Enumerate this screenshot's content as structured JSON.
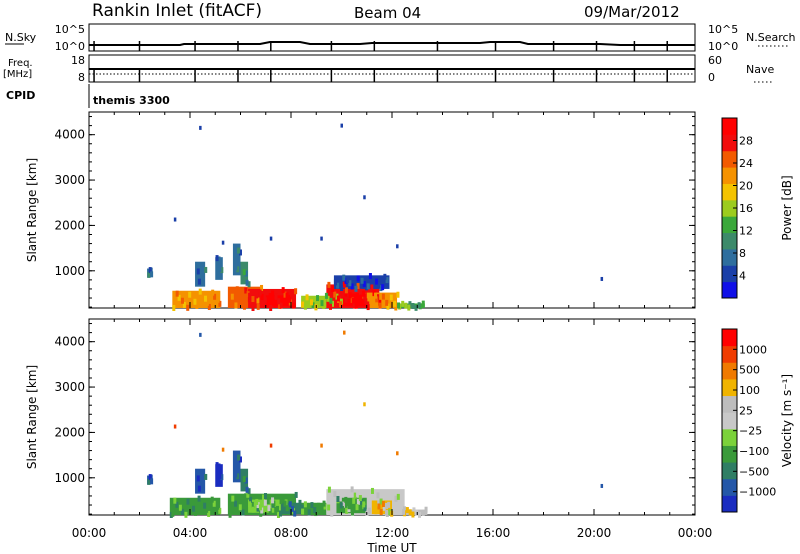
{
  "header": {
    "station": "Rankin Inlet (fitACF)",
    "beam": "Beam 04",
    "date": "09/Mar/2012"
  },
  "top_panels": {
    "nsky_label": "N.Sky",
    "nsky_ticks": [
      "10^5",
      "10^0"
    ],
    "nsearch_label": "N.Search",
    "nsearch_ticks": [
      "10^5",
      "10^0"
    ],
    "freq_label": "Freq.",
    "freq_unit": "[MHz]",
    "freq_ticks": [
      "18",
      "8"
    ],
    "nave_label": "Nave",
    "nave_ticks": [
      "60",
      "0"
    ],
    "cpid_label": "CPID",
    "cpid_value": "themis 3300"
  },
  "time_axis": {
    "label": "Time UT",
    "ticks": [
      "00:00",
      "04:00",
      "08:00",
      "12:00",
      "16:00",
      "20:00",
      "00:00"
    ]
  },
  "colors": {
    "power_scale": [
      "#1010e8",
      "#1a3fa8",
      "#2e6e9e",
      "#3c8a6a",
      "#3aa83a",
      "#9ccc1e",
      "#f4c300",
      "#f59200",
      "#f25a00",
      "#f20c0c",
      "#ff0000"
    ],
    "velocity_scale": [
      "#1a2cc0",
      "#2457a8",
      "#2f7e64",
      "#3a9a3a",
      "#7bd23a",
      "#c8c8c8",
      "#bdbdbd",
      "#f0b400",
      "#f07a00",
      "#f03c00",
      "#ff0000"
    ]
  },
  "chart_data": [
    {
      "type": "heatmap",
      "name": "power",
      "xlabel": "",
      "ylabel": "Slant Range [km]",
      "ylim": [
        180,
        4500
      ],
      "yticks": [
        1000,
        2000,
        3000,
        4000
      ],
      "xlim": [
        0,
        24
      ],
      "colorbar": {
        "label": "Power [dB]",
        "ticks": [
          "28",
          "24",
          "20",
          "16",
          "12",
          "8",
          "4"
        ]
      },
      "patches": [
        {
          "t0": 3.3,
          "t1": 5.2,
          "r0": 180,
          "r1": 560,
          "c": 7
        },
        {
          "t0": 5.5,
          "t1": 6.8,
          "r0": 180,
          "r1": 650,
          "c": 8
        },
        {
          "t0": 6.3,
          "t1": 8.2,
          "r0": 180,
          "r1": 600,
          "c": 9
        },
        {
          "t0": 7.0,
          "t1": 7.9,
          "r0": 220,
          "r1": 460,
          "c": 10
        },
        {
          "t0": 8.4,
          "t1": 10.0,
          "r0": 180,
          "r1": 450,
          "c": 5
        },
        {
          "t0": 9.4,
          "t1": 11.5,
          "r0": 180,
          "r1": 700,
          "c": 9
        },
        {
          "t0": 10.0,
          "t1": 11.1,
          "r0": 220,
          "r1": 500,
          "c": 10
        },
        {
          "t0": 11.0,
          "t1": 12.2,
          "r0": 180,
          "r1": 520,
          "c": 7
        },
        {
          "t0": 12.2,
          "t1": 13.3,
          "r0": 180,
          "r1": 280,
          "c": 4
        },
        {
          "t0": 4.2,
          "t1": 4.6,
          "r0": 650,
          "r1": 1200,
          "c": 2
        },
        {
          "t0": 5.0,
          "t1": 5.3,
          "r0": 800,
          "r1": 1300,
          "c": 2
        },
        {
          "t0": 5.7,
          "t1": 6.0,
          "r0": 900,
          "r1": 1600,
          "c": 2
        },
        {
          "t0": 6.0,
          "t1": 6.3,
          "r0": 700,
          "r1": 1200,
          "c": 3
        },
        {
          "t0": 2.3,
          "t1": 2.45,
          "r0": 850,
          "r1": 1050,
          "c": 2
        },
        {
          "t0": 9.7,
          "t1": 11.9,
          "r0": 600,
          "r1": 900,
          "c": 1
        }
      ],
      "points": [
        {
          "t": 4.4,
          "r": 4150,
          "c": 1
        },
        {
          "t": 10.0,
          "r": 4200,
          "c": 1
        },
        {
          "t": 10.9,
          "r": 2620,
          "c": 1
        },
        {
          "t": 3.4,
          "r": 2130,
          "c": 1
        },
        {
          "t": 7.2,
          "r": 1710,
          "c": 1
        },
        {
          "t": 9.2,
          "r": 1710,
          "c": 1
        },
        {
          "t": 12.2,
          "r": 1540,
          "c": 1
        },
        {
          "t": 20.3,
          "r": 820,
          "c": 1
        },
        {
          "t": 5.3,
          "r": 1620,
          "c": 1
        }
      ]
    },
    {
      "type": "heatmap",
      "name": "velocity",
      "xlabel": "Time UT",
      "ylabel": "Slant Range [km]",
      "ylim": [
        180,
        4500
      ],
      "yticks": [
        1000,
        2000,
        3000,
        4000
      ],
      "xlim": [
        0,
        24
      ],
      "colorbar": {
        "label": "Velocity [m s⁻¹]",
        "ticks": [
          "1000",
          "500",
          "100",
          "25",
          "−25",
          "−100",
          "−500",
          "−1000"
        ]
      },
      "patches": [
        {
          "t0": 3.2,
          "t1": 5.2,
          "r0": 180,
          "r1": 560,
          "c": 3
        },
        {
          "t0": 5.5,
          "t1": 8.2,
          "r0": 180,
          "r1": 650,
          "c": 3
        },
        {
          "t0": 6.3,
          "t1": 7.6,
          "r0": 230,
          "r1": 520,
          "c": 4
        },
        {
          "t0": 7.6,
          "t1": 8.4,
          "r0": 200,
          "r1": 450,
          "c": 2
        },
        {
          "t0": 8.4,
          "t1": 9.4,
          "r0": 180,
          "r1": 450,
          "c": 3
        },
        {
          "t0": 9.4,
          "t1": 12.5,
          "r0": 180,
          "r1": 750,
          "c": 5
        },
        {
          "t0": 9.8,
          "t1": 11.0,
          "r0": 220,
          "r1": 560,
          "c": 3
        },
        {
          "t0": 11.2,
          "t1": 12.0,
          "r0": 200,
          "r1": 500,
          "c": 7
        },
        {
          "t0": 12.4,
          "t1": 13.4,
          "r0": 180,
          "r1": 300,
          "c": 6
        },
        {
          "t0": 4.2,
          "t1": 4.6,
          "r0": 650,
          "r1": 1200,
          "c": 1
        },
        {
          "t0": 5.0,
          "t1": 5.3,
          "r0": 800,
          "r1": 1300,
          "c": 0
        },
        {
          "t0": 5.7,
          "t1": 6.0,
          "r0": 900,
          "r1": 1600,
          "c": 1
        },
        {
          "t0": 6.0,
          "t1": 6.3,
          "r0": 700,
          "r1": 1200,
          "c": 2
        },
        {
          "t0": 2.3,
          "t1": 2.45,
          "r0": 850,
          "r1": 1050,
          "c": 1
        }
      ],
      "points": [
        {
          "t": 4.4,
          "r": 4150,
          "c": 1
        },
        {
          "t": 10.1,
          "r": 4200,
          "c": 8
        },
        {
          "t": 10.9,
          "r": 2620,
          "c": 7
        },
        {
          "t": 3.4,
          "r": 2130,
          "c": 9
        },
        {
          "t": 7.2,
          "r": 1710,
          "c": 9
        },
        {
          "t": 9.2,
          "r": 1710,
          "c": 8
        },
        {
          "t": 12.2,
          "r": 1540,
          "c": 8
        },
        {
          "t": 20.3,
          "r": 820,
          "c": 1
        },
        {
          "t": 5.3,
          "r": 1620,
          "c": 8
        }
      ]
    }
  ]
}
